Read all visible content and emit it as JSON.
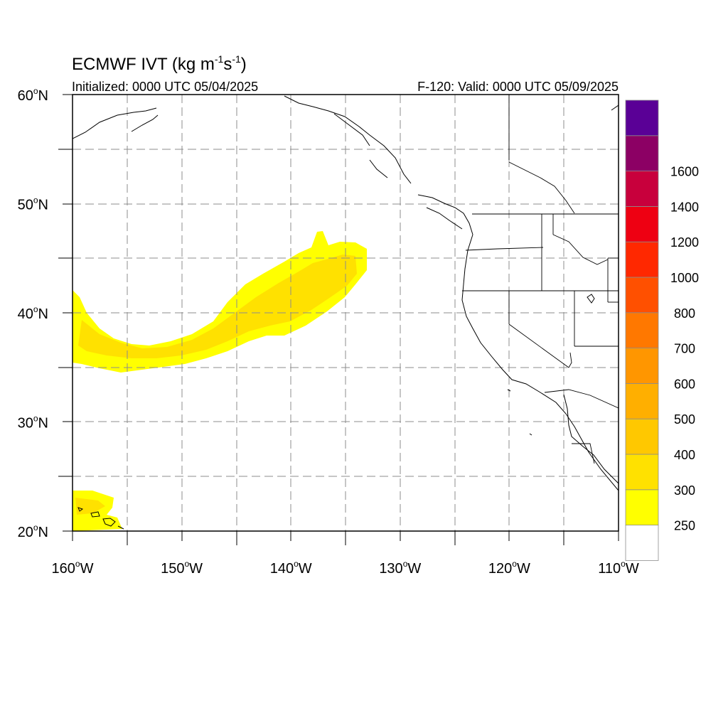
{
  "title": {
    "main": "ECMWF IVT (kg m",
    "exp1": "-1",
    "mid": "s",
    "exp2": "-1",
    "close": ")"
  },
  "subtitle_left": "Initialized: 0000 UTC 05/04/2025",
  "subtitle_right": "F-120: Valid: 0000 UTC 05/09/2025",
  "map": {
    "lon_range": [
      -160,
      -110
    ],
    "lat_range": [
      20,
      60
    ],
    "lon_ticks": [
      {
        "value": -160,
        "label": "160",
        "suffix": "W"
      },
      {
        "value": -150,
        "label": "150",
        "suffix": "W"
      },
      {
        "value": -140,
        "label": "140",
        "suffix": "W"
      },
      {
        "value": -130,
        "label": "130",
        "suffix": "W"
      },
      {
        "value": -120,
        "label": "120",
        "suffix": "W"
      },
      {
        "value": -110,
        "label": "110",
        "suffix": "W"
      }
    ],
    "lat_ticks": [
      {
        "value": 60,
        "label": "60",
        "suffix": "N"
      },
      {
        "value": 50,
        "label": "50",
        "suffix": "N"
      },
      {
        "value": 40,
        "label": "40",
        "suffix": "N"
      },
      {
        "value": 30,
        "label": "30",
        "suffix": "N"
      },
      {
        "value": 20,
        "label": "20",
        "suffix": "N"
      }
    ],
    "gridlines": "dashed, every 5 degrees",
    "degree_symbol": "o"
  },
  "colorbar": {
    "levels": [
      "250",
      "300",
      "400",
      "500",
      "600",
      "700",
      "800",
      "1000",
      "1200",
      "1400",
      "1600"
    ],
    "colors": [
      "#ffffff",
      "#ffff00",
      "#ffe100",
      "#ffc800",
      "#ffaf00",
      "#ff9600",
      "#ff7800",
      "#ff5000",
      "#ff2800",
      "#ee0012",
      "#c8003c",
      "#8c0064",
      "#5a0096"
    ]
  },
  "ivt_features": [
    {
      "name": "atmospheric-river",
      "fill": "#ffff00",
      "core_fill": "#ffe100"
    },
    {
      "name": "hawaii-region",
      "fill": "#ffff00",
      "core_fill": "#ffe100"
    }
  ]
}
